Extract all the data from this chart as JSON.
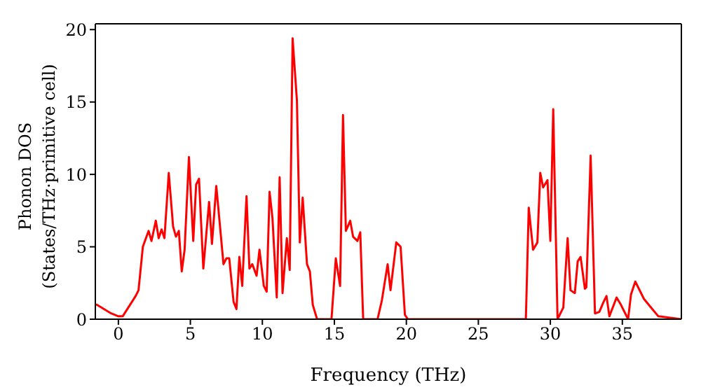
{
  "chart_data": {
    "type": "line",
    "xlabel": "Frequency (THz)",
    "ylabel": "Phonon DOS\n(States/THz·primitive cell)",
    "xlim": [
      -1.6,
      39.1
    ],
    "ylim": [
      0,
      20.4
    ],
    "xticks": [
      0,
      5,
      10,
      15,
      20,
      25,
      30,
      35
    ],
    "yticks": [
      0,
      5,
      10,
      15,
      20
    ],
    "grid": false,
    "legend": false,
    "marker": "none",
    "line_style": "solid",
    "series": [
      {
        "color": "#ff0000",
        "x": [
          -1.6,
          -1.5,
          -0.5,
          0,
          0.3,
          1.2,
          1.4,
          1.7,
          2.1,
          2.3,
          2.6,
          2.8,
          3.0,
          3.2,
          3.5,
          3.8,
          4.0,
          4.2,
          4.4,
          4.6,
          4.9,
          5.2,
          5.4,
          5.6,
          5.9,
          6.3,
          6.5,
          6.8,
          7.3,
          7.5,
          7.7,
          8.0,
          8.2,
          8.4,
          8.6,
          8.9,
          9.1,
          9.3,
          9.6,
          9.8,
          10.1,
          10.3,
          10.5,
          10.7,
          11.0,
          11.2,
          11.4,
          11.7,
          11.9,
          12.1,
          12.4,
          12.6,
          12.8,
          13.1,
          13.3,
          13.5,
          13.8,
          14.8,
          15.1,
          15.4,
          15.6,
          15.8,
          16.1,
          16.3,
          16.6,
          16.8,
          17.0,
          18.0,
          18.3,
          18.7,
          18.9,
          19.3,
          19.6,
          19.9,
          20.1,
          28.3,
          28.5,
          28.8,
          29.1,
          29.3,
          29.5,
          29.8,
          30.0,
          30.2,
          30.5,
          30.9,
          31.2,
          31.4,
          31.7,
          31.9,
          32.1,
          32.4,
          32.5,
          32.8,
          33.1,
          33.4,
          33.7,
          33.9,
          34.1,
          34.6,
          34.9,
          35.4,
          35.6,
          35.9,
          36.5,
          37.0,
          37.5,
          39.1
        ],
        "values": [
          1.0,
          1.0,
          0.4,
          0.2,
          0.2,
          1.6,
          2.0,
          5.0,
          6.1,
          5.4,
          6.8,
          5.6,
          6.2,
          5.6,
          10.1,
          6.4,
          5.7,
          6.1,
          3.3,
          4.8,
          11.2,
          5.4,
          9.3,
          9.7,
          3.5,
          8.1,
          5.2,
          9.2,
          3.8,
          4.2,
          4.2,
          1.2,
          0.7,
          4.3,
          2.3,
          8.5,
          3.5,
          3.8,
          3.0,
          4.8,
          2.3,
          1.9,
          8.8,
          7.0,
          1.5,
          9.8,
          1.8,
          5.6,
          3.4,
          19.4,
          15.1,
          5.3,
          8.4,
          3.8,
          3.3,
          1.0,
          0.0,
          0.0,
          4.2,
          2.3,
          14.1,
          6.1,
          6.8,
          5.7,
          5.4,
          6.0,
          0.0,
          0.0,
          1.3,
          3.8,
          2.0,
          5.3,
          5.0,
          0.3,
          0.0,
          0.0,
          7.7,
          4.8,
          5.3,
          10.1,
          9.1,
          9.6,
          5.4,
          14.5,
          0.0,
          0.8,
          5.6,
          2.0,
          1.8,
          4.0,
          4.3,
          2.1,
          2.2,
          11.3,
          0.4,
          0.5,
          1.2,
          1.6,
          0.2,
          1.5,
          1.0,
          0.0,
          1.7,
          2.6,
          1.4,
          0.8,
          0.2,
          0.0
        ]
      }
    ]
  }
}
